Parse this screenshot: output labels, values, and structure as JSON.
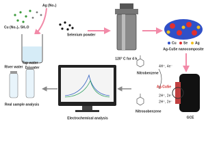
{
  "synthesis": {
    "silver_salt": "Ag (No₃)",
    "copper_salt": "Cu (No₃)₂ 5H₂O",
    "solvent": "D I water",
    "selenium": "Selenium powder",
    "condition": "120° C for 4 h."
  },
  "product": {
    "legend": [
      "Cu",
      "Se",
      "Ag"
    ],
    "label": "Ag-CuSe nanocomposite"
  },
  "electrode": {
    "coating": "Ag-CuSe",
    "label": "GCE"
  },
  "reaction": {
    "reactant": "Nitrobenzene",
    "step1": "4H⁺, 4e⁻",
    "step2a": "2H⁺, 2e⁻",
    "step2b": "2H⁺, 2e⁻",
    "product": "Nitrosobenzene"
  },
  "analysis": {
    "electrochemical": "Electrochemical analysis",
    "samples": [
      "River water",
      "Tap water"
    ],
    "real_sample": "Real sample analysis"
  }
}
